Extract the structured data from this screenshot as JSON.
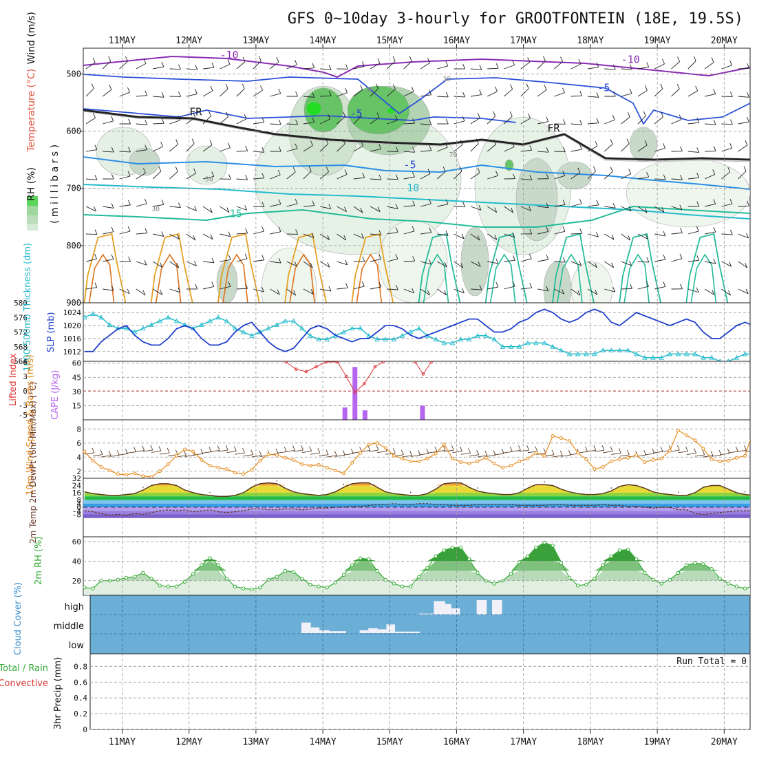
{
  "title": "GFS 0~10day 3-hourly for GROOTFONTEIN (18E, 19.5S)",
  "date_labels": [
    "11MAY",
    "12MAY",
    "13MAY",
    "14MAY",
    "15MAY",
    "16MAY",
    "17MAY",
    "18MAY",
    "19MAY",
    "20MAY"
  ],
  "colors": {
    "grid": "#888888",
    "rh_green": "#33bb33",
    "cloud_bg": "#6baed6",
    "pressure_blue": "#1f3fcc",
    "thickness_cyan": "#22bbcc",
    "wind_orange": "#e6891a",
    "precip_red": "#dd3333",
    "cape_purple": "#b566f0"
  },
  "chart_data": [
    {
      "type": "contour",
      "panel": "upper-air",
      "ylabel_parts": [
        "RH (%)",
        "Temperature (°C)",
        "Wind (m/s)"
      ],
      "ylabel2": "( m i l l i b a r s )",
      "yticks": [
        500,
        600,
        700,
        800,
        900
      ],
      "ylim": [
        455,
        900
      ],
      "isotherm_labels": [
        {
          "text": "-10",
          "day": 1.6,
          "p": 473
        },
        {
          "text": "-10",
          "day": 7.6,
          "p": 481
        },
        {
          "text": "-5",
          "day": 3.5,
          "p": 575
        },
        {
          "text": "-5",
          "day": 7.2,
          "p": 530
        },
        {
          "text": "-5",
          "day": 4.3,
          "p": 665
        },
        {
          "text": "10",
          "day": 4.35,
          "p": 705
        },
        {
          "text": "15",
          "day": 1.7,
          "p": 750
        },
        {
          "text": "FR",
          "day": 1.1,
          "p": 572
        },
        {
          "text": "FR",
          "day": 6.45,
          "p": 601
        }
      ],
      "rh_labels": [
        {
          "text": "30",
          "day": 1.3,
          "p": 688
        },
        {
          "text": "30",
          "day": 0.5,
          "p": 740
        },
        {
          "text": "30",
          "day": 3.7,
          "p": 532
        },
        {
          "text": "30",
          "day": 4.85,
          "p": 513
        },
        {
          "text": "70",
          "day": 4.95,
          "p": 645
        }
      ]
    },
    {
      "type": "line",
      "panel": "thickness-slp",
      "ylabel_left": "1000-500mb Thickness (dm)",
      "ylabel_right": "SLP (mb)",
      "yticks_left": [
        564,
        568,
        572,
        576,
        580
      ],
      "yticks_right": [
        1012,
        1016,
        1020,
        1024
      ],
      "series": [
        {
          "name": "1000-500mb thickness",
          "unit": "dm",
          "values": [
            576,
            577,
            576,
            574,
            573,
            573,
            572,
            573,
            574,
            575,
            576,
            575,
            574,
            573,
            574,
            575,
            576,
            575,
            573,
            572,
            571,
            572,
            573,
            574,
            575,
            575,
            573,
            571,
            570,
            570,
            571,
            572,
            573,
            573,
            571,
            570,
            570,
            570,
            571,
            572,
            573,
            571,
            570,
            569,
            569,
            570,
            570,
            571,
            571,
            570,
            568,
            568,
            568,
            569,
            569,
            569,
            568,
            567,
            566,
            566,
            566,
            566,
            567,
            567,
            567,
            567,
            566,
            565,
            565,
            565,
            566,
            566,
            566,
            566,
            565,
            565,
            564,
            564,
            565,
            566,
            566,
            566,
            566,
            565,
            564,
            564
          ]
        },
        {
          "name": "SLP",
          "unit": "mb",
          "values": [
            1012,
            1012,
            1015,
            1017,
            1019,
            1020,
            1017,
            1015,
            1014,
            1014,
            1016,
            1019,
            1020,
            1019,
            1016,
            1014,
            1014,
            1015,
            1018,
            1020,
            1021,
            1018,
            1015,
            1013,
            1012,
            1013,
            1016,
            1019,
            1020,
            1019,
            1017,
            1016,
            1015,
            1016,
            1016,
            1018,
            1020,
            1020,
            1019,
            1017,
            1016,
            1017,
            1018,
            1019,
            1020,
            1021,
            1022,
            1022,
            1020,
            1018,
            1018,
            1019,
            1021,
            1022,
            1024,
            1025,
            1024,
            1022,
            1021,
            1022,
            1024,
            1025,
            1024,
            1021,
            1020,
            1022,
            1024,
            1023,
            1022,
            1021,
            1020,
            1021,
            1022,
            1021,
            1018,
            1016,
            1016,
            1018,
            1020,
            1021,
            1020,
            1017,
            1015,
            1015,
            1017,
            1020
          ]
        }
      ]
    },
    {
      "type": "bar+line",
      "panel": "instability",
      "ylabel_left": "Lifted Index",
      "ylabel_right": "CAPE (J/kg)",
      "yticks_left": [
        -5,
        -3,
        0,
        3,
        6
      ],
      "yticks_right": [
        15,
        30,
        45,
        60
      ],
      "cape_bars": [
        {
          "day": 3.33,
          "value": 13
        },
        {
          "day": 3.48,
          "value": 56
        },
        {
          "day": 3.63,
          "value": 10
        },
        {
          "day": 4.49,
          "value": 15
        }
      ],
      "lifted_index": [
        {
          "day": 2.45,
          "value": 6
        },
        {
          "day": 2.6,
          "value": 4.5
        },
        {
          "day": 2.75,
          "value": 4
        },
        {
          "day": 2.9,
          "value": 5
        },
        {
          "day": 3.05,
          "value": 6
        },
        {
          "day": 3.22,
          "value": 6
        },
        {
          "day": 3.35,
          "value": 3
        },
        {
          "day": 3.48,
          "value": -0.3
        },
        {
          "day": 3.62,
          "value": 1.5
        },
        {
          "day": 3.78,
          "value": 5
        },
        {
          "day": 3.9,
          "value": 6
        },
        {
          "day": 4.38,
          "value": 6
        },
        {
          "day": 4.5,
          "value": 3.5
        },
        {
          "day": 4.62,
          "value": 6
        }
      ]
    },
    {
      "type": "line",
      "panel": "10m-wind",
      "ylabel": "10m Wind Speed & Barbs (m/s)",
      "yticks": [
        2,
        4,
        6,
        8
      ],
      "values": [
        4.8,
        3.5,
        2.6,
        2.1,
        1.6,
        1.5,
        1.7,
        1.3,
        1.2,
        2.0,
        3.0,
        4.2,
        5.1,
        4.8,
        3.6,
        2.8,
        2.5,
        2.3,
        1.8,
        1.6,
        2.2,
        3.5,
        4.4,
        4.3,
        3.9,
        3.6,
        3.0,
        2.8,
        2.9,
        2.5,
        2.1,
        1.7,
        3.2,
        4.6,
        5.8,
        6.0,
        5.3,
        4.2,
        3.8,
        3.4,
        3.4,
        3.8,
        4.5,
        5.8,
        3.8,
        3.3,
        3.1,
        3.4,
        3.9,
        3.1,
        2.5,
        2.8,
        3.4,
        3.8,
        4.6,
        4.2,
        7.0,
        6.7,
        6.3,
        4.6,
        3.7,
        2.3,
        2.6,
        3.4,
        3.7,
        3.9,
        4.3,
        3.3,
        3.6,
        3.8,
        4.9,
        7.8,
        7.1,
        6.4,
        5.2,
        3.7,
        3.4,
        3.5,
        3.9,
        4.2,
        7.8,
        6.3,
        4.6,
        3.9,
        3.6,
        5.2
      ]
    },
    {
      "type": "area",
      "panel": "2m-temperature",
      "ylabel": "2m Temp 2m DewPt (6hr Min/Max) (°C)",
      "yticks": [
        -8,
        -4,
        0,
        4,
        8,
        16,
        24,
        32
      ],
      "series": [
        {
          "name": "2m temperature",
          "values": [
            17,
            15,
            14,
            13,
            13,
            14,
            15,
            19,
            24,
            26,
            26,
            24,
            19,
            16,
            14,
            13,
            12,
            12,
            13,
            16,
            22,
            26,
            27,
            26,
            21,
            17,
            15,
            14,
            13,
            14,
            17,
            22,
            26,
            27,
            27,
            22,
            17,
            15,
            14,
            13,
            13,
            15,
            20,
            26,
            27,
            27,
            22,
            18,
            16,
            15,
            14,
            14,
            16,
            21,
            25,
            25,
            24,
            20,
            17,
            15,
            14,
            14,
            15,
            18,
            23,
            25,
            24,
            21,
            17,
            15,
            14,
            13,
            13,
            16,
            22,
            24,
            24,
            20,
            16,
            14,
            13,
            12,
            12,
            14,
            20,
            22,
            22,
            18,
            15,
            13,
            12
          ]
        },
        {
          "name": "2m dew point",
          "values": [
            -4,
            -5,
            -7,
            -9,
            -8,
            -9,
            -7,
            -8,
            -6,
            -4,
            -3,
            -4,
            -3,
            -5,
            -4,
            -3,
            -5,
            -6,
            -5,
            -4,
            -2,
            -2,
            -3,
            -3,
            -2,
            -2,
            -3,
            -2,
            -1,
            -1,
            0,
            0,
            1,
            1,
            2,
            3,
            3,
            4,
            3,
            3,
            4,
            4,
            3,
            3,
            2,
            2,
            2,
            3,
            3,
            3,
            3,
            3,
            2,
            2,
            2,
            2,
            3,
            3,
            2,
            2,
            2,
            2,
            3,
            2,
            2,
            1,
            1,
            0,
            -1,
            0,
            0,
            -3,
            -3,
            -7,
            -8,
            -7,
            -6,
            -5,
            -4,
            -4,
            -4,
            -3,
            -3,
            -2,
            -2,
            -2,
            -2,
            -2
          ]
        }
      ]
    },
    {
      "type": "area",
      "panel": "2m-rh",
      "ylabel": "2m RH (%)",
      "yticks": [
        20,
        40,
        60
      ],
      "values": [
        13,
        12,
        20,
        20,
        21,
        23,
        24,
        28,
        22,
        15,
        14,
        14,
        19,
        27,
        36,
        43,
        36,
        22,
        14,
        12,
        11,
        13,
        21,
        24,
        30,
        29,
        22,
        16,
        14,
        13,
        18,
        26,
        36,
        43,
        42,
        30,
        21,
        17,
        14,
        14,
        24,
        33,
        45,
        51,
        54,
        54,
        42,
        28,
        20,
        17,
        20,
        27,
        39,
        45,
        54,
        59,
        56,
        38,
        23,
        15,
        16,
        22,
        36,
        45,
        51,
        52,
        42,
        28,
        21,
        17,
        21,
        28,
        36,
        38,
        37,
        32,
        22,
        17,
        14,
        12,
        14,
        19,
        27,
        31,
        26,
        22
      ]
    },
    {
      "type": "step",
      "panel": "cloud-cover",
      "ylabel": "Cloud Cover (%)",
      "level_labels": [
        "high",
        "middle",
        "low"
      ],
      "high_segments": [
        {
          "from": 4.43,
          "to": 4.66,
          "value": 0.05
        },
        {
          "from": 4.66,
          "to": 4.83,
          "value": 0.7
        },
        {
          "from": 4.83,
          "to": 4.92,
          "value": 0.55
        },
        {
          "from": 4.92,
          "to": 5.05,
          "value": 0.32
        },
        {
          "from": 5.3,
          "to": 5.45,
          "value": 0.75
        },
        {
          "from": 5.53,
          "to": 5.68,
          "value": 0.75
        }
      ],
      "middle_segments": [
        {
          "from": 2.68,
          "to": 2.82,
          "value": 0.55
        },
        {
          "from": 2.82,
          "to": 2.95,
          "value": 0.3
        },
        {
          "from": 2.95,
          "to": 3.1,
          "value": 0.15
        },
        {
          "from": 3.1,
          "to": 3.35,
          "value": 0.1
        },
        {
          "from": 3.55,
          "to": 3.68,
          "value": 0.15
        },
        {
          "from": 3.68,
          "to": 3.82,
          "value": 0.25
        },
        {
          "from": 3.82,
          "to": 3.95,
          "value": 0.2
        },
        {
          "from": 3.95,
          "to": 4.08,
          "value": 0.45
        },
        {
          "from": 4.08,
          "to": 4.45,
          "value": 0.08
        }
      ]
    },
    {
      "type": "bar",
      "panel": "precip",
      "ylabel_left": [
        "Total / Rain",
        "Convective"
      ],
      "ylabel": "3hr Precip (mm)",
      "yticks": [
        0,
        0.2,
        0.4,
        0.6,
        0.8
      ],
      "run_total_label": "Run Total = 0",
      "values": []
    }
  ]
}
